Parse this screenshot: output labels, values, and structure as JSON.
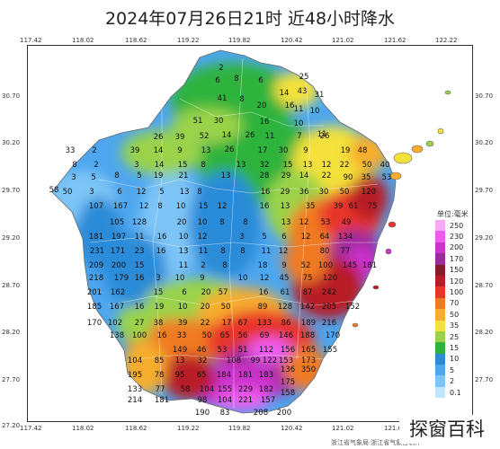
{
  "title": "2024年07月26日21时  近48小时降水",
  "lon_ticks": [
    "117.42",
    "118.02",
    "118.62",
    "119.22",
    "119.82",
    "120.42",
    "121.02",
    "121.62",
    "122.22"
  ],
  "lat_ticks": [
    "30.70",
    "30.20",
    "29.70",
    "29.20",
    "28.70",
    "28.20",
    "27.70",
    "27.20"
  ],
  "legend": {
    "title": "单位:毫米",
    "items": [
      {
        "label": "250",
        "color": "#f7a8f7"
      },
      {
        "label": "230",
        "color": "#ee5cee"
      },
      {
        "label": "200",
        "color": "#cc33cc"
      },
      {
        "label": "170",
        "color": "#9b2a9b"
      },
      {
        "label": "150",
        "color": "#8a1a2a"
      },
      {
        "label": "120",
        "color": "#b81c28"
      },
      {
        "label": "100",
        "color": "#e8352a"
      },
      {
        "label": "70",
        "color": "#f07a22"
      },
      {
        "label": "50",
        "color": "#f6ad2e"
      },
      {
        "label": "35",
        "color": "#f4e13b"
      },
      {
        "label": "25",
        "color": "#9ad34a"
      },
      {
        "label": "15",
        "color": "#2db33c"
      },
      {
        "label": "10",
        "color": "#2b8bd8"
      },
      {
        "label": "5",
        "color": "#4ea6ee"
      },
      {
        "label": "2",
        "color": "#7dc5f7"
      },
      {
        "label": "0.1",
        "color": "#bfe6fb"
      }
    ]
  },
  "stations": [
    {
      "v": "2"
    },
    {
      "v": "25"
    },
    {
      "v": "6"
    },
    {
      "v": "8"
    },
    {
      "v": "6"
    },
    {
      "v": "14"
    },
    {
      "v": "43"
    },
    {
      "v": "31"
    },
    {
      "v": "41"
    },
    {
      "v": "8"
    },
    {
      "v": "20"
    },
    {
      "v": "16"
    },
    {
      "v": "11"
    },
    {
      "v": "10"
    },
    {
      "v": "51"
    },
    {
      "v": "30"
    },
    {
      "v": "16"
    },
    {
      "v": "10"
    },
    {
      "v": "11"
    },
    {
      "v": "26"
    },
    {
      "v": "39"
    },
    {
      "v": "52"
    },
    {
      "v": "14"
    },
    {
      "v": "26"
    },
    {
      "v": "11"
    },
    {
      "v": "7"
    },
    {
      "v": "26"
    },
    {
      "v": "33"
    },
    {
      "v": "2"
    },
    {
      "v": "39"
    },
    {
      "v": "14"
    },
    {
      "v": "9"
    },
    {
      "v": "13"
    },
    {
      "v": "26"
    },
    {
      "v": "17"
    },
    {
      "v": "30"
    },
    {
      "v": "9"
    },
    {
      "v": "19"
    },
    {
      "v": "48"
    },
    {
      "v": "8"
    },
    {
      "v": "2"
    },
    {
      "v": "3"
    },
    {
      "v": "14"
    },
    {
      "v": "15"
    },
    {
      "v": "8"
    },
    {
      "v": "13"
    },
    {
      "v": "32"
    },
    {
      "v": "15"
    },
    {
      "v": "13"
    },
    {
      "v": "12"
    },
    {
      "v": "22"
    },
    {
      "v": "50"
    },
    {
      "v": "40"
    },
    {
      "v": "58"
    },
    {
      "v": "3"
    },
    {
      "v": "5"
    },
    {
      "v": "8"
    },
    {
      "v": "5"
    },
    {
      "v": "19"
    },
    {
      "v": "21"
    },
    {
      "v": "13"
    },
    {
      "v": "28"
    },
    {
      "v": "29"
    },
    {
      "v": "14"
    },
    {
      "v": "22"
    },
    {
      "v": "90"
    },
    {
      "v": "35"
    },
    {
      "v": "53"
    },
    {
      "v": "50"
    },
    {
      "v": "3"
    },
    {
      "v": "6"
    },
    {
      "v": "12"
    },
    {
      "v": "5"
    },
    {
      "v": "13"
    },
    {
      "v": "8"
    },
    {
      "v": "16"
    },
    {
      "v": "29"
    },
    {
      "v": "36"
    },
    {
      "v": "30"
    },
    {
      "v": "50"
    },
    {
      "v": "120"
    },
    {
      "v": "107"
    },
    {
      "v": "167"
    },
    {
      "v": "12"
    },
    {
      "v": "8"
    },
    {
      "v": "10"
    },
    {
      "v": "15"
    },
    {
      "v": "12"
    },
    {
      "v": "16"
    },
    {
      "v": "13"
    },
    {
      "v": "35"
    },
    {
      "v": "39"
    },
    {
      "v": "61"
    },
    {
      "v": "75"
    },
    {
      "v": "105"
    },
    {
      "v": "128"
    },
    {
      "v": "20"
    },
    {
      "v": "10"
    },
    {
      "v": "8"
    },
    {
      "v": "8"
    },
    {
      "v": "13"
    },
    {
      "v": "12"
    },
    {
      "v": "53"
    },
    {
      "v": "49"
    },
    {
      "v": "181"
    },
    {
      "v": "197"
    },
    {
      "v": "11"
    },
    {
      "v": "16"
    },
    {
      "v": "10"
    },
    {
      "v": "12"
    },
    {
      "v": "3"
    },
    {
      "v": "5"
    },
    {
      "v": "6"
    },
    {
      "v": "12"
    },
    {
      "v": "64"
    },
    {
      "v": "134"
    },
    {
      "v": "231"
    },
    {
      "v": "171"
    },
    {
      "v": "23"
    },
    {
      "v": "16"
    },
    {
      "v": "13"
    },
    {
      "v": "11"
    },
    {
      "v": "8"
    },
    {
      "v": "8"
    },
    {
      "v": "11"
    },
    {
      "v": "12"
    },
    {
      "v": "80"
    },
    {
      "v": "77"
    },
    {
      "v": "209"
    },
    {
      "v": "200"
    },
    {
      "v": "15"
    },
    {
      "v": "11"
    },
    {
      "v": "2"
    },
    {
      "v": "8"
    },
    {
      "v": "18"
    },
    {
      "v": "9"
    },
    {
      "v": "52"
    },
    {
      "v": "100"
    },
    {
      "v": "145"
    },
    {
      "v": "181"
    },
    {
      "v": "218"
    },
    {
      "v": "179"
    },
    {
      "v": "16"
    },
    {
      "v": "3"
    },
    {
      "v": "10"
    },
    {
      "v": "9"
    },
    {
      "v": "10"
    },
    {
      "v": "12"
    },
    {
      "v": "45"
    },
    {
      "v": "75"
    },
    {
      "v": "120"
    },
    {
      "v": "201"
    },
    {
      "v": "162"
    },
    {
      "v": "15"
    },
    {
      "v": "6"
    },
    {
      "v": "20"
    },
    {
      "v": "57"
    },
    {
      "v": "16"
    },
    {
      "v": "61"
    },
    {
      "v": "87"
    },
    {
      "v": "242"
    },
    {
      "v": "185"
    },
    {
      "v": "167"
    },
    {
      "v": "16"
    },
    {
      "v": "19"
    },
    {
      "v": "10"
    },
    {
      "v": "20"
    },
    {
      "v": "50"
    },
    {
      "v": "89"
    },
    {
      "v": "128"
    },
    {
      "v": "142"
    },
    {
      "v": "205"
    },
    {
      "v": "152"
    },
    {
      "v": "170"
    },
    {
      "v": "102"
    },
    {
      "v": "27"
    },
    {
      "v": "38"
    },
    {
      "v": "39"
    },
    {
      "v": "22"
    },
    {
      "v": "17"
    },
    {
      "v": "67"
    },
    {
      "v": "133"
    },
    {
      "v": "86"
    },
    {
      "v": "189"
    },
    {
      "v": "216"
    },
    {
      "v": "138"
    },
    {
      "v": "100"
    },
    {
      "v": "16"
    },
    {
      "v": "33"
    },
    {
      "v": "50"
    },
    {
      "v": "65"
    },
    {
      "v": "56"
    },
    {
      "v": "69"
    },
    {
      "v": "146"
    },
    {
      "v": "188"
    },
    {
      "v": "170"
    },
    {
      "v": "149"
    },
    {
      "v": "46"
    },
    {
      "v": "53"
    },
    {
      "v": "51"
    },
    {
      "v": "112"
    },
    {
      "v": "156"
    },
    {
      "v": "165"
    },
    {
      "v": "155"
    },
    {
      "v": "153"
    },
    {
      "v": "173"
    },
    {
      "v": "104"
    },
    {
      "v": "85"
    },
    {
      "v": "13"
    },
    {
      "v": "32"
    },
    {
      "v": "108"
    },
    {
      "v": "99"
    },
    {
      "v": "122"
    },
    {
      "v": "136"
    },
    {
      "v": "350"
    },
    {
      "v": "195"
    },
    {
      "v": "78"
    },
    {
      "v": "95"
    },
    {
      "v": "65"
    },
    {
      "v": "184"
    },
    {
      "v": "181"
    },
    {
      "v": "183"
    },
    {
      "v": "175"
    },
    {
      "v": "133"
    },
    {
      "v": "77"
    },
    {
      "v": "58"
    },
    {
      "v": "104"
    },
    {
      "v": "155"
    },
    {
      "v": "229"
    },
    {
      "v": "182"
    },
    {
      "v": "158"
    },
    {
      "v": "214"
    },
    {
      "v": "181"
    },
    {
      "v": "98"
    },
    {
      "v": "104"
    },
    {
      "v": "221"
    },
    {
      "v": "157"
    },
    {
      "v": "190"
    },
    {
      "v": "83"
    },
    {
      "v": "208"
    },
    {
      "v": "200"
    },
    {
      "v": "27"
    },
    {
      "v": "134"
    }
  ],
  "credits": "浙江省气象局  浙江省气象台制作",
  "watermark": "探窗百科"
}
